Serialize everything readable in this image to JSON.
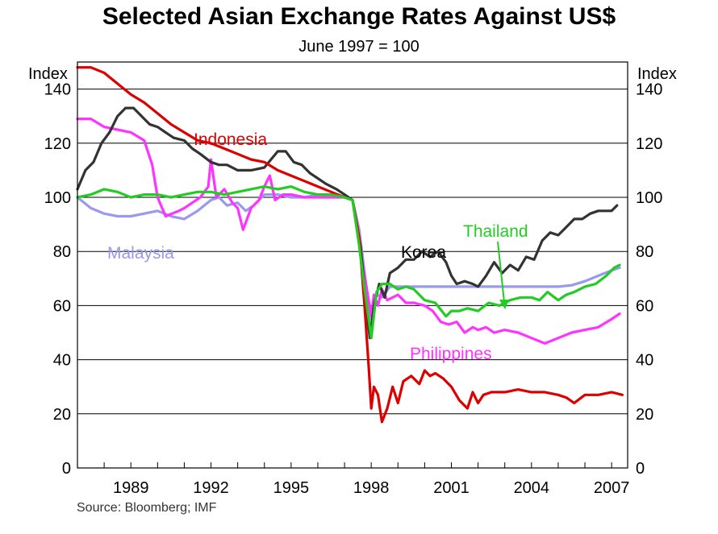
{
  "chart_data": {
    "type": "line",
    "title": "Selected Asian Exchange Rates Against US$",
    "subtitle": "June 1997 = 100",
    "ylabel_left": "Index",
    "ylabel_right": "Index",
    "source": "Source: Bloomberg; IMF",
    "xlim": [
      1987,
      2007.6
    ],
    "ylim": [
      0,
      150
    ],
    "yticks": [
      0,
      20,
      40,
      60,
      80,
      100,
      120,
      140
    ],
    "xticks": [
      1989,
      1992,
      1995,
      1998,
      2001,
      2004,
      2007
    ],
    "grid": "horizontal",
    "series": [
      {
        "name": "Indonesia",
        "color": "#dd0000",
        "points": [
          [
            1987,
            148
          ],
          [
            1987.5,
            148
          ],
          [
            1988,
            146
          ],
          [
            1988.5,
            142
          ],
          [
            1989,
            138
          ],
          [
            1989.5,
            135
          ],
          [
            1990,
            131
          ],
          [
            1990.5,
            127
          ],
          [
            1991,
            124
          ],
          [
            1991.5,
            121
          ],
          [
            1992,
            120
          ],
          [
            1992.5,
            118
          ],
          [
            1993,
            116
          ],
          [
            1993.5,
            114
          ],
          [
            1994,
            113
          ],
          [
            1994.5,
            110
          ],
          [
            1995,
            108
          ],
          [
            1995.5,
            106
          ],
          [
            1996,
            104
          ],
          [
            1996.5,
            102
          ],
          [
            1997,
            100
          ],
          [
            1997.3,
            99
          ],
          [
            1997.55,
            85
          ],
          [
            1997.75,
            60
          ],
          [
            1997.9,
            38
          ],
          [
            1998.0,
            22
          ],
          [
            1998.1,
            30
          ],
          [
            1998.25,
            27
          ],
          [
            1998.4,
            17
          ],
          [
            1998.6,
            22
          ],
          [
            1998.8,
            30
          ],
          [
            1999.0,
            24
          ],
          [
            1999.2,
            32
          ],
          [
            1999.5,
            34
          ],
          [
            1999.8,
            31
          ],
          [
            2000.0,
            36
          ],
          [
            2000.2,
            34
          ],
          [
            2000.4,
            35
          ],
          [
            2000.7,
            33
          ],
          [
            2001.0,
            30
          ],
          [
            2001.3,
            25
          ],
          [
            2001.6,
            22
          ],
          [
            2001.8,
            28
          ],
          [
            2002.0,
            24
          ],
          [
            2002.2,
            27
          ],
          [
            2002.5,
            28
          ],
          [
            2003.0,
            28
          ],
          [
            2003.5,
            29
          ],
          [
            2004.0,
            28
          ],
          [
            2004.5,
            28
          ],
          [
            2005.0,
            27
          ],
          [
            2005.3,
            26
          ],
          [
            2005.6,
            24
          ],
          [
            2006.0,
            27
          ],
          [
            2006.5,
            27
          ],
          [
            2007.0,
            28
          ],
          [
            2007.4,
            27
          ]
        ]
      },
      {
        "name": "Philippines",
        "color": "#ff33ff",
        "points": [
          [
            1987,
            129
          ],
          [
            1987.5,
            129
          ],
          [
            1988,
            126
          ],
          [
            1988.5,
            125
          ],
          [
            1989,
            124
          ],
          [
            1989.5,
            121
          ],
          [
            1989.8,
            112
          ],
          [
            1990.0,
            100
          ],
          [
            1990.3,
            93
          ],
          [
            1990.8,
            95
          ],
          [
            1991.0,
            96
          ],
          [
            1991.3,
            98
          ],
          [
            1991.6,
            100
          ],
          [
            1991.9,
            104
          ],
          [
            1992.0,
            114
          ],
          [
            1992.2,
            100
          ],
          [
            1992.5,
            103
          ],
          [
            1992.8,
            98
          ],
          [
            1993.0,
            96
          ],
          [
            1993.2,
            88
          ],
          [
            1993.5,
            96
          ],
          [
            1993.8,
            99
          ],
          [
            1994.0,
            104
          ],
          [
            1994.2,
            108
          ],
          [
            1994.4,
            99
          ],
          [
            1994.7,
            101
          ],
          [
            1995.0,
            101
          ],
          [
            1995.5,
            100
          ],
          [
            1996.0,
            100
          ],
          [
            1996.5,
            100
          ],
          [
            1997.0,
            100
          ],
          [
            1997.3,
            99
          ],
          [
            1997.6,
            80
          ],
          [
            1997.8,
            68
          ],
          [
            1998.0,
            56
          ],
          [
            1998.1,
            64
          ],
          [
            1998.25,
            60
          ],
          [
            1998.4,
            66
          ],
          [
            1998.6,
            62
          ],
          [
            1998.8,
            63
          ],
          [
            1999.0,
            64
          ],
          [
            1999.3,
            61
          ],
          [
            1999.6,
            61
          ],
          [
            2000.0,
            60
          ],
          [
            2000.3,
            58
          ],
          [
            2000.6,
            54
          ],
          [
            2000.9,
            53
          ],
          [
            2001.2,
            54
          ],
          [
            2001.5,
            50
          ],
          [
            2001.8,
            52
          ],
          [
            2002.0,
            51
          ],
          [
            2002.3,
            52
          ],
          [
            2002.6,
            50
          ],
          [
            2003.0,
            51
          ],
          [
            2003.5,
            50
          ],
          [
            2004.0,
            48
          ],
          [
            2004.5,
            46
          ],
          [
            2005.0,
            48
          ],
          [
            2005.5,
            50
          ],
          [
            2006.0,
            51
          ],
          [
            2006.5,
            52
          ],
          [
            2007.0,
            55
          ],
          [
            2007.3,
            57
          ]
        ]
      },
      {
        "name": "Korea",
        "color": "#333333",
        "points": [
          [
            1987,
            103
          ],
          [
            1987.3,
            110
          ],
          [
            1987.6,
            113
          ],
          [
            1987.9,
            120
          ],
          [
            1988.2,
            124
          ],
          [
            1988.5,
            130
          ],
          [
            1988.8,
            133
          ],
          [
            1989.1,
            133
          ],
          [
            1989.4,
            130
          ],
          [
            1989.7,
            127
          ],
          [
            1990.0,
            126
          ],
          [
            1990.3,
            124
          ],
          [
            1990.6,
            122
          ],
          [
            1991.0,
            121
          ],
          [
            1991.3,
            118
          ],
          [
            1991.6,
            116
          ],
          [
            1992.0,
            113
          ],
          [
            1992.3,
            112
          ],
          [
            1992.6,
            112
          ],
          [
            1993.0,
            110
          ],
          [
            1993.5,
            110
          ],
          [
            1994.0,
            111
          ],
          [
            1994.5,
            117
          ],
          [
            1994.8,
            117
          ],
          [
            1995.1,
            113
          ],
          [
            1995.4,
            112
          ],
          [
            1995.7,
            109
          ],
          [
            1996.0,
            107
          ],
          [
            1996.3,
            105
          ],
          [
            1996.7,
            103
          ],
          [
            1997.0,
            101
          ],
          [
            1997.3,
            99
          ],
          [
            1997.6,
            82
          ],
          [
            1997.8,
            60
          ],
          [
            1997.95,
            48
          ],
          [
            1998.1,
            60
          ],
          [
            1998.3,
            68
          ],
          [
            1998.5,
            63
          ],
          [
            1998.7,
            72
          ],
          [
            1999.0,
            74
          ],
          [
            1999.3,
            77
          ],
          [
            1999.6,
            77
          ],
          [
            1999.9,
            80
          ],
          [
            2000.2,
            78
          ],
          [
            2000.5,
            80
          ],
          [
            2000.8,
            76
          ],
          [
            2001.0,
            71
          ],
          [
            2001.2,
            68
          ],
          [
            2001.5,
            69
          ],
          [
            2001.8,
            68
          ],
          [
            2002.0,
            67
          ],
          [
            2002.3,
            71
          ],
          [
            2002.6,
            76
          ],
          [
            2002.9,
            72
          ],
          [
            2003.2,
            75
          ],
          [
            2003.5,
            73
          ],
          [
            2003.8,
            78
          ],
          [
            2004.1,
            77
          ],
          [
            2004.4,
            84
          ],
          [
            2004.7,
            87
          ],
          [
            2005.0,
            86
          ],
          [
            2005.3,
            89
          ],
          [
            2005.6,
            92
          ],
          [
            2005.9,
            92
          ],
          [
            2006.2,
            94
          ],
          [
            2006.5,
            95
          ],
          [
            2006.8,
            95
          ],
          [
            2007.0,
            95
          ],
          [
            2007.2,
            97
          ]
        ]
      },
      {
        "name": "Thailand",
        "color": "#22cc22",
        "points": [
          [
            1987,
            100
          ],
          [
            1987.5,
            101
          ],
          [
            1988,
            103
          ],
          [
            1988.5,
            102
          ],
          [
            1989,
            100
          ],
          [
            1989.5,
            101
          ],
          [
            1990,
            101
          ],
          [
            1990.5,
            100
          ],
          [
            1991,
            101
          ],
          [
            1991.5,
            102
          ],
          [
            1992,
            102
          ],
          [
            1992.5,
            101
          ],
          [
            1993,
            102
          ],
          [
            1993.5,
            103
          ],
          [
            1994,
            104
          ],
          [
            1994.5,
            103
          ],
          [
            1995,
            104
          ],
          [
            1995.5,
            102
          ],
          [
            1996,
            101
          ],
          [
            1996.5,
            101
          ],
          [
            1997,
            100
          ],
          [
            1997.3,
            99
          ],
          [
            1997.55,
            82
          ],
          [
            1997.75,
            66
          ],
          [
            1998.0,
            48
          ],
          [
            1998.2,
            65
          ],
          [
            1998.4,
            68
          ],
          [
            1998.7,
            68
          ],
          [
            1999.0,
            66
          ],
          [
            1999.3,
            67
          ],
          [
            1999.6,
            66
          ],
          [
            2000.0,
            62
          ],
          [
            2000.4,
            61
          ],
          [
            2000.8,
            56
          ],
          [
            2001.0,
            58
          ],
          [
            2001.3,
            58
          ],
          [
            2001.6,
            59
          ],
          [
            2002.0,
            58
          ],
          [
            2002.4,
            61
          ],
          [
            2002.8,
            60
          ],
          [
            2003.2,
            62
          ],
          [
            2003.6,
            63
          ],
          [
            2004.0,
            63
          ],
          [
            2004.3,
            62
          ],
          [
            2004.6,
            65
          ],
          [
            2005.0,
            62
          ],
          [
            2005.3,
            64
          ],
          [
            2005.6,
            65
          ],
          [
            2006.0,
            67
          ],
          [
            2006.4,
            68
          ],
          [
            2006.8,
            71
          ],
          [
            2007.1,
            74
          ],
          [
            2007.3,
            75
          ]
        ]
      },
      {
        "name": "Malaysia",
        "color": "#9999ee",
        "points": [
          [
            1987,
            100
          ],
          [
            1987.5,
            96
          ],
          [
            1988,
            94
          ],
          [
            1988.5,
            93
          ],
          [
            1989,
            93
          ],
          [
            1989.5,
            94
          ],
          [
            1990,
            95
          ],
          [
            1990.5,
            93
          ],
          [
            1991,
            92
          ],
          [
            1991.5,
            95
          ],
          [
            1992,
            99
          ],
          [
            1992.3,
            100
          ],
          [
            1992.6,
            97
          ],
          [
            1993,
            98
          ],
          [
            1993.3,
            95
          ],
          [
            1993.6,
            97
          ],
          [
            1994,
            101
          ],
          [
            1994.5,
            101
          ],
          [
            1995,
            100
          ],
          [
            1995.5,
            100
          ],
          [
            1996,
            101
          ],
          [
            1996.5,
            101
          ],
          [
            1997,
            100
          ],
          [
            1997.3,
            99
          ],
          [
            1997.55,
            88
          ],
          [
            1997.8,
            68
          ],
          [
            1998.0,
            55
          ],
          [
            1998.2,
            64
          ],
          [
            1998.4,
            63
          ],
          [
            1998.7,
            67
          ],
          [
            1999.0,
            67
          ],
          [
            2000,
            67
          ],
          [
            2001,
            67
          ],
          [
            2002,
            67
          ],
          [
            2003,
            67
          ],
          [
            2004,
            67
          ],
          [
            2005,
            67
          ],
          [
            2005.5,
            67.5
          ],
          [
            2006,
            69
          ],
          [
            2006.5,
            71
          ],
          [
            2007,
            73
          ],
          [
            2007.3,
            74
          ]
        ]
      }
    ],
    "annotations": [
      {
        "text": "Indonesia",
        "series": "Indonesia"
      },
      {
        "text": "Malaysia",
        "series": "Malaysia"
      },
      {
        "text": "Korea",
        "series": "Korea"
      },
      {
        "text": "Thailand",
        "series": "Thailand"
      },
      {
        "text": "Philippines",
        "series": "Philippines"
      }
    ]
  }
}
